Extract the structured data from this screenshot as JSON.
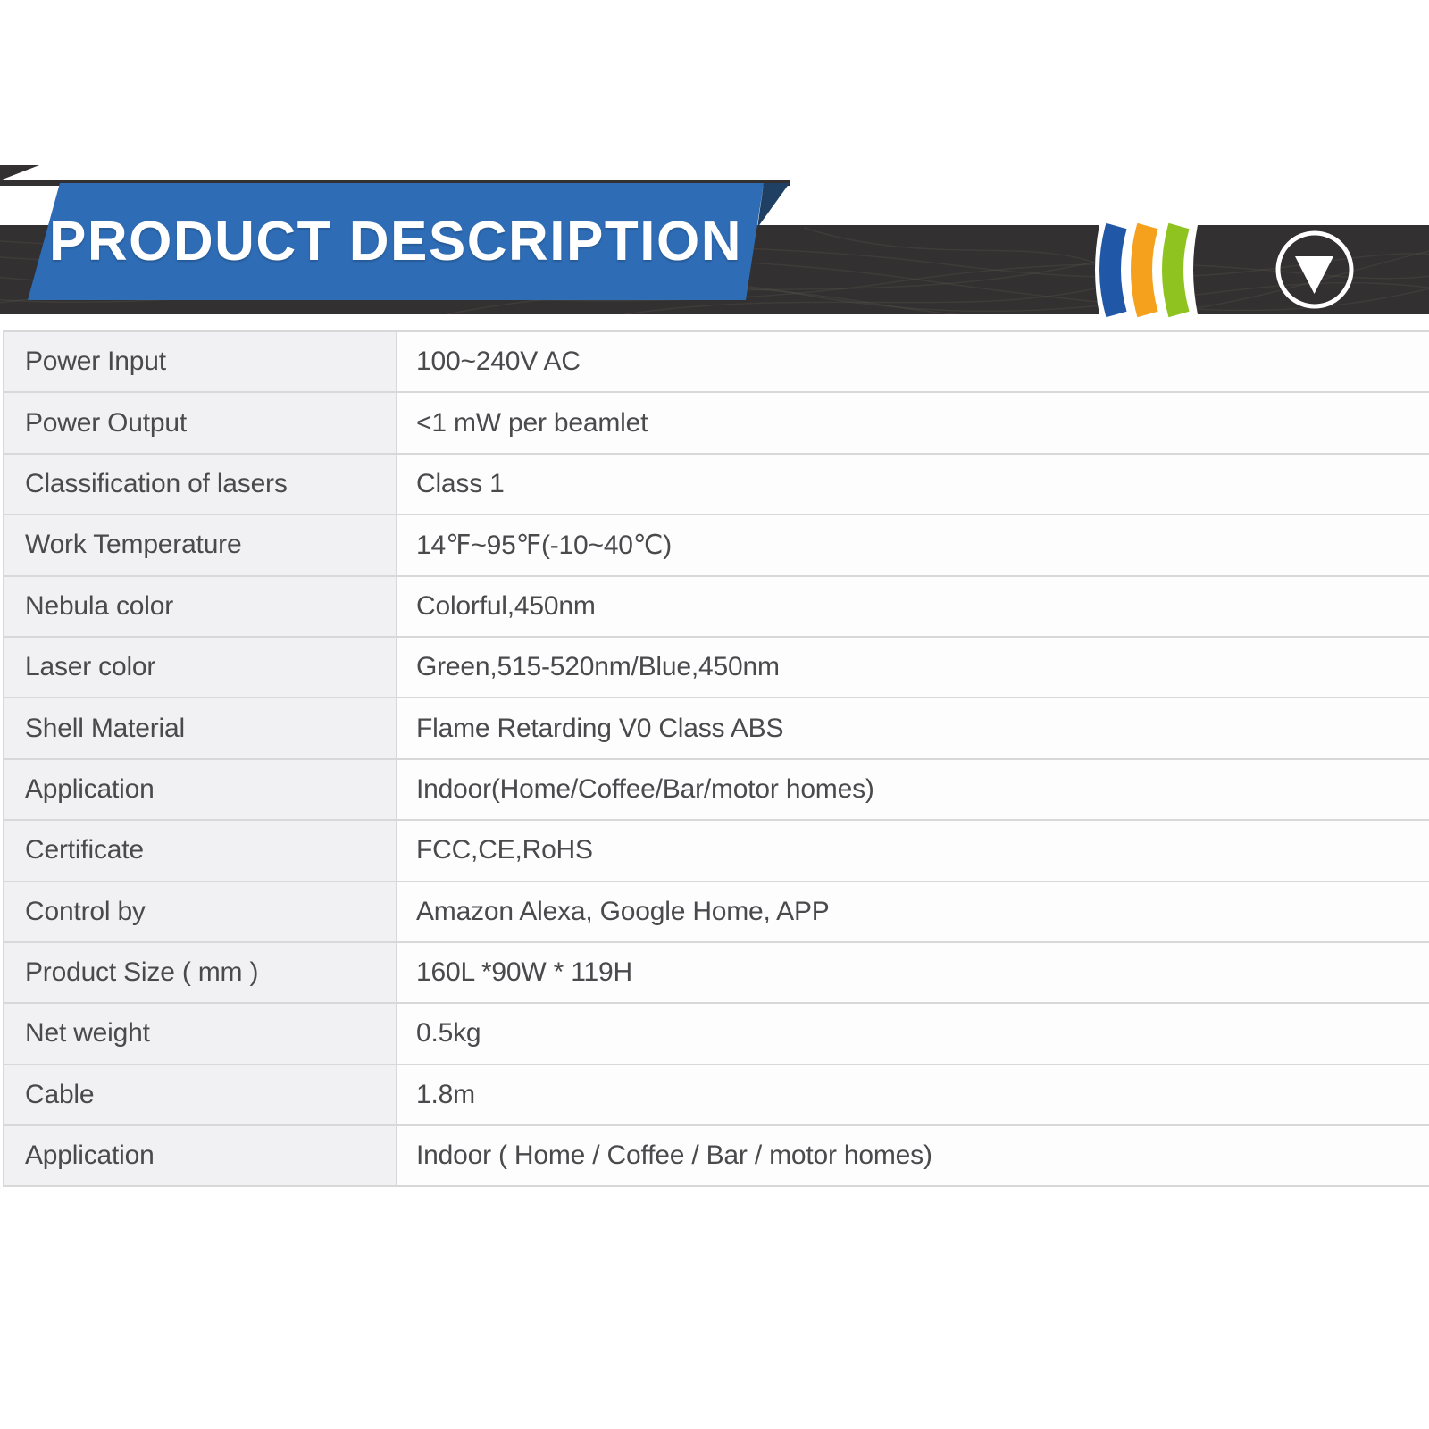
{
  "header": {
    "title": "PRODUCT DESCRIPTION",
    "ribbon_color": "#2e6cb5",
    "ribbon_fold_color": "#1f4063",
    "band_color": "#323030",
    "icon_color": "#ffffff",
    "stripes": [
      {
        "name": "blue",
        "color": "#2157a7"
      },
      {
        "name": "orange",
        "color": "#f5a11d"
      },
      {
        "name": "green",
        "color": "#8fc320"
      }
    ]
  },
  "table": {
    "rows": [
      {
        "label": "Power Input",
        "value": "100~240V AC"
      },
      {
        "label": "Power Output",
        "value": "<1 mW per beamlet"
      },
      {
        "label": "Classification of lasers",
        "value": "Class 1"
      },
      {
        "label": "Work Temperature",
        "value": "14℉~95℉(-10~40℃)"
      },
      {
        "label": "Nebula color",
        "value": "Colorful,450nm"
      },
      {
        "label": "Laser color",
        "value": "Green,515-520nm/Blue,450nm"
      },
      {
        "label": "Shell Material",
        "value": "Flame Retarding V0 Class ABS"
      },
      {
        "label": "Application",
        "value": "Indoor(Home/Coffee/Bar/motor homes)"
      },
      {
        "label": "Certificate",
        "value": "FCC,CE,RoHS"
      },
      {
        "label": "Control by",
        "value": "Amazon Alexa, Google Home, APP"
      },
      {
        "label": "Product Size ( mm )",
        "value": "160L *90W * 119H"
      },
      {
        "label": "Net weight",
        "value": "0.5kg"
      },
      {
        "label": "Cable",
        "value": "1.8m"
      },
      {
        "label": "Application",
        "value": "Indoor ( Home / Coffee / Bar / motor homes)"
      }
    ]
  }
}
